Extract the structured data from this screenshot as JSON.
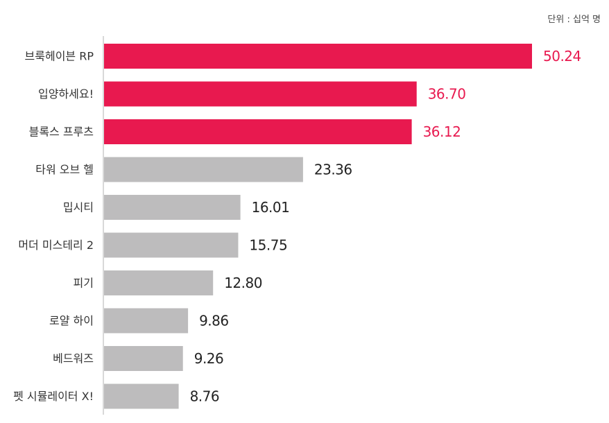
{
  "chart_data": {
    "type": "bar",
    "orientation": "horizontal",
    "unit": "단위 : 십억 명",
    "categories": [
      "브룩헤이븐 RP",
      "입양하세요!",
      "블록스 프루츠",
      "타워 오브 헬",
      "밉시티",
      "머더 미스테리 2",
      "피기",
      "로얄 하이",
      "베드워즈",
      "펫 시뮬레이터 X!"
    ],
    "values": [
      50.24,
      36.7,
      36.12,
      23.36,
      16.01,
      15.75,
      12.8,
      9.86,
      9.26,
      8.76
    ],
    "value_labels": [
      "50.24",
      "36.70",
      "36.12",
      "23.36",
      "16.01",
      "15.75",
      "12.80",
      "9.86",
      "9.26",
      "8.76"
    ],
    "highlight_count": 3,
    "colors": {
      "highlight": "#e8194f",
      "default": "#bdbcbd",
      "highlight_text": "#e8194f",
      "default_text": "#222222",
      "axis": "#cccccc"
    },
    "xlim": [
      0,
      50.24
    ],
    "grid": false,
    "legend": "none"
  }
}
